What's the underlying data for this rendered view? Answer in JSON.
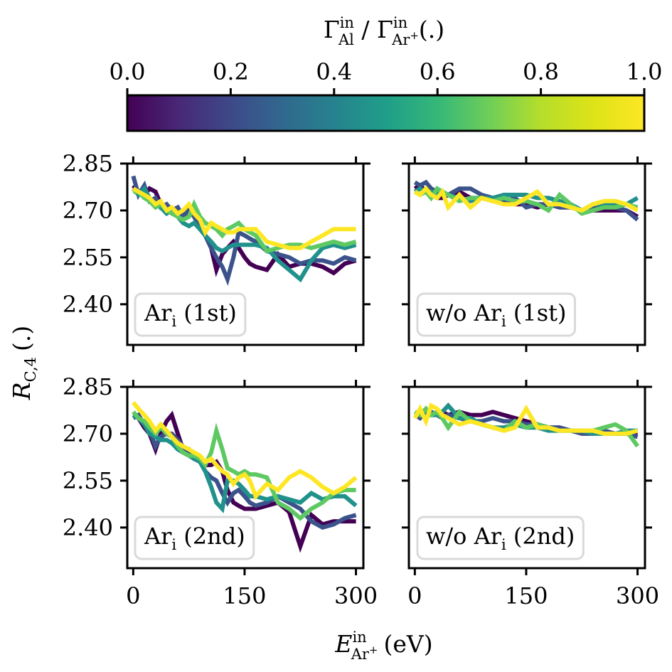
{
  "figure": {
    "colorbar": {
      "label_main": "Γ",
      "label_sub1": "Al",
      "label_sup1": "in",
      "label_sep": " / ",
      "label_main2": "Γ",
      "label_sub2": "Ar",
      "label_sub2_sup": "+",
      "label_sup2": "in",
      "label_unit": "(.)",
      "ticks": [
        "0.0",
        "0.2",
        "0.4",
        "0.6",
        "0.8",
        "1.0"
      ],
      "tick_values": [
        0.0,
        0.2,
        0.4,
        0.6,
        0.8,
        1.0
      ],
      "colormap": "viridis",
      "range": [
        0.0,
        1.0
      ]
    },
    "ylabel": {
      "main": "R",
      "sub": "C,4",
      "unit": "(.)"
    },
    "xlabel": {
      "main": "E",
      "sub": "Ar",
      "sub_sup": "+",
      "sup": "in",
      "unit": "(eV)"
    }
  },
  "chart_data": [
    {
      "type": "line",
      "panel": "top-left",
      "legend_text": "Ar",
      "legend_sub": "i",
      "legend_suffix": " (1st)",
      "xlim": [
        -8,
        310
      ],
      "ylim": [
        2.27,
        2.85
      ],
      "xticks": [
        0,
        150,
        300
      ],
      "xtick_labels": [
        "0",
        "150",
        "300"
      ],
      "yticks": [
        2.4,
        2.55,
        2.7,
        2.85
      ],
      "ytick_labels": [
        "2.40",
        "2.55",
        "2.70",
        "2.85"
      ],
      "x": [
        0,
        7,
        15,
        22,
        30,
        37,
        45,
        52,
        60,
        67,
        75,
        82,
        90,
        97,
        105,
        112,
        120,
        127,
        135,
        142,
        150,
        157,
        165,
        180,
        195,
        210,
        225,
        240,
        255,
        270,
        285,
        300
      ],
      "series": [
        {
          "color_value": 0.0,
          "color": "#440154",
          "values": [
            2.78,
            2.76,
            2.75,
            2.77,
            2.76,
            2.72,
            2.71,
            2.7,
            2.7,
            2.69,
            2.71,
            2.68,
            2.66,
            2.62,
            2.58,
            2.51,
            2.56,
            2.58,
            2.6,
            2.58,
            2.55,
            2.53,
            2.52,
            2.51,
            2.56,
            2.52,
            2.53,
            2.53,
            2.52,
            2.5,
            2.53,
            2.54
          ]
        },
        {
          "color_value": 0.25,
          "color": "#3b528b",
          "values": [
            2.81,
            2.75,
            2.78,
            2.73,
            2.74,
            2.71,
            2.72,
            2.7,
            2.71,
            2.68,
            2.7,
            2.68,
            2.64,
            2.62,
            2.58,
            2.55,
            2.52,
            2.48,
            2.55,
            2.63,
            2.62,
            2.61,
            2.6,
            2.57,
            2.56,
            2.55,
            2.53,
            2.54,
            2.54,
            2.53,
            2.55,
            2.54
          ]
        },
        {
          "color_value": 0.5,
          "color": "#21918c",
          "values": [
            2.77,
            2.75,
            2.77,
            2.74,
            2.72,
            2.71,
            2.69,
            2.7,
            2.68,
            2.66,
            2.65,
            2.66,
            2.64,
            2.62,
            2.6,
            2.58,
            2.57,
            2.58,
            2.59,
            2.59,
            2.59,
            2.59,
            2.59,
            2.58,
            2.54,
            2.51,
            2.48,
            2.54,
            2.58,
            2.59,
            2.58,
            2.59
          ]
        },
        {
          "color_value": 0.75,
          "color": "#5ec962",
          "values": [
            2.76,
            2.76,
            2.74,
            2.73,
            2.71,
            2.72,
            2.7,
            2.69,
            2.68,
            2.67,
            2.68,
            2.72,
            2.68,
            2.66,
            2.65,
            2.64,
            2.62,
            2.64,
            2.65,
            2.66,
            2.64,
            2.63,
            2.62,
            2.57,
            2.58,
            2.59,
            2.59,
            2.58,
            2.59,
            2.6,
            2.59,
            2.6
          ]
        },
        {
          "color_value": 1.0,
          "color": "#fde725",
          "values": [
            2.77,
            2.76,
            2.75,
            2.74,
            2.72,
            2.73,
            2.7,
            2.71,
            2.69,
            2.7,
            2.72,
            2.69,
            2.67,
            2.63,
            2.66,
            2.65,
            2.64,
            2.63,
            2.63,
            2.64,
            2.64,
            2.64,
            2.64,
            2.6,
            2.59,
            2.58,
            2.58,
            2.6,
            2.62,
            2.64,
            2.64,
            2.64
          ]
        }
      ]
    },
    {
      "type": "line",
      "panel": "top-right",
      "legend_text": "w/o Ar",
      "legend_sub": "i",
      "legend_suffix": " (1st)",
      "xlim": [
        -8,
        310
      ],
      "ylim": [
        2.27,
        2.85
      ],
      "xticks": [
        0,
        150,
        300
      ],
      "xtick_labels": [
        "0",
        "150",
        "300"
      ],
      "yticks": [
        2.4,
        2.55,
        2.7,
        2.85
      ],
      "ytick_labels": [
        "2.40",
        "2.55",
        "2.70",
        "2.85"
      ],
      "x": [
        0,
        7,
        15,
        22,
        30,
        37,
        45,
        60,
        75,
        90,
        105,
        120,
        135,
        150,
        165,
        180,
        195,
        210,
        225,
        240,
        255,
        270,
        285,
        300
      ],
      "series": [
        {
          "color_value": 0.0,
          "color": "#440154",
          "values": [
            2.77,
            2.78,
            2.76,
            2.75,
            2.74,
            2.74,
            2.75,
            2.76,
            2.74,
            2.74,
            2.73,
            2.73,
            2.72,
            2.72,
            2.71,
            2.72,
            2.71,
            2.71,
            2.7,
            2.7,
            2.7,
            2.7,
            2.7,
            2.68
          ]
        },
        {
          "color_value": 0.25,
          "color": "#3b528b",
          "values": [
            2.79,
            2.78,
            2.79,
            2.77,
            2.76,
            2.76,
            2.75,
            2.77,
            2.77,
            2.75,
            2.74,
            2.73,
            2.74,
            2.71,
            2.72,
            2.72,
            2.71,
            2.71,
            2.7,
            2.71,
            2.71,
            2.71,
            2.7,
            2.67
          ]
        },
        {
          "color_value": 0.5,
          "color": "#21918c",
          "values": [
            2.76,
            2.77,
            2.76,
            2.76,
            2.75,
            2.76,
            2.75,
            2.74,
            2.73,
            2.74,
            2.74,
            2.75,
            2.75,
            2.75,
            2.74,
            2.74,
            2.73,
            2.72,
            2.7,
            2.72,
            2.72,
            2.72,
            2.72,
            2.74
          ]
        },
        {
          "color_value": 0.75,
          "color": "#5ec962",
          "values": [
            2.76,
            2.75,
            2.76,
            2.74,
            2.77,
            2.76,
            2.75,
            2.73,
            2.74,
            2.74,
            2.73,
            2.74,
            2.73,
            2.73,
            2.72,
            2.7,
            2.75,
            2.72,
            2.69,
            2.7,
            2.71,
            2.71,
            2.72,
            2.71
          ]
        },
        {
          "color_value": 1.0,
          "color": "#fde725",
          "values": [
            2.76,
            2.75,
            2.77,
            2.75,
            2.74,
            2.76,
            2.71,
            2.75,
            2.71,
            2.74,
            2.73,
            2.72,
            2.72,
            2.74,
            2.76,
            2.72,
            2.72,
            2.71,
            2.7,
            2.72,
            2.73,
            2.73,
            2.72,
            2.7
          ]
        }
      ]
    },
    {
      "type": "line",
      "panel": "bottom-left",
      "legend_text": "Ar",
      "legend_sub": "i",
      "legend_suffix": " (2nd)",
      "xlim": [
        -8,
        310
      ],
      "ylim": [
        2.27,
        2.85
      ],
      "xticks": [
        0,
        150,
        300
      ],
      "xtick_labels": [
        "0",
        "150",
        "300"
      ],
      "yticks": [
        2.4,
        2.55,
        2.7,
        2.85
      ],
      "ytick_labels": [
        "2.40",
        "2.55",
        "2.70",
        "2.85"
      ],
      "x": [
        0,
        7,
        15,
        22,
        30,
        37,
        45,
        52,
        60,
        67,
        75,
        82,
        90,
        97,
        105,
        112,
        120,
        127,
        135,
        142,
        150,
        157,
        165,
        180,
        195,
        210,
        225,
        240,
        255,
        270,
        285,
        300
      ],
      "series": [
        {
          "color_value": 0.0,
          "color": "#440154",
          "values": [
            2.76,
            2.75,
            2.72,
            2.7,
            2.65,
            2.7,
            2.74,
            2.76,
            2.7,
            2.65,
            2.65,
            2.62,
            2.62,
            2.6,
            2.6,
            2.61,
            2.58,
            2.52,
            2.48,
            2.47,
            2.46,
            2.46,
            2.46,
            2.47,
            2.48,
            2.45,
            2.34,
            2.44,
            2.41,
            2.42,
            2.42,
            2.42
          ]
        },
        {
          "color_value": 0.25,
          "color": "#3b528b",
          "values": [
            2.75,
            2.76,
            2.73,
            2.71,
            2.66,
            2.69,
            2.7,
            2.7,
            2.68,
            2.66,
            2.64,
            2.62,
            2.61,
            2.58,
            2.56,
            2.55,
            2.51,
            2.48,
            2.51,
            2.52,
            2.5,
            2.48,
            2.47,
            2.48,
            2.5,
            2.48,
            2.46,
            2.42,
            2.4,
            2.41,
            2.43,
            2.44
          ]
        },
        {
          "color_value": 0.5,
          "color": "#21918c",
          "values": [
            2.76,
            2.75,
            2.73,
            2.7,
            2.69,
            2.68,
            2.68,
            2.67,
            2.65,
            2.64,
            2.63,
            2.62,
            2.61,
            2.58,
            2.53,
            2.48,
            2.46,
            2.55,
            2.55,
            2.54,
            2.52,
            2.5,
            2.5,
            2.49,
            2.5,
            2.49,
            2.48,
            2.51,
            2.49,
            2.5,
            2.5,
            2.47
          ]
        },
        {
          "color_value": 0.75,
          "color": "#5ec962",
          "values": [
            2.77,
            2.75,
            2.74,
            2.72,
            2.7,
            2.72,
            2.7,
            2.69,
            2.66,
            2.64,
            2.63,
            2.63,
            2.62,
            2.6,
            2.64,
            2.71,
            2.65,
            2.59,
            2.58,
            2.57,
            2.58,
            2.57,
            2.57,
            2.56,
            2.48,
            2.46,
            2.43,
            2.46,
            2.48,
            2.51,
            2.52,
            2.52
          ]
        },
        {
          "color_value": 1.0,
          "color": "#fde725",
          "values": [
            2.8,
            2.78,
            2.76,
            2.74,
            2.71,
            2.73,
            2.71,
            2.69,
            2.67,
            2.66,
            2.65,
            2.64,
            2.63,
            2.61,
            2.62,
            2.6,
            2.58,
            2.57,
            2.54,
            2.56,
            2.57,
            2.55,
            2.5,
            2.54,
            2.52,
            2.56,
            2.58,
            2.56,
            2.53,
            2.51,
            2.53,
            2.56
          ]
        }
      ]
    },
    {
      "type": "line",
      "panel": "bottom-right",
      "legend_text": "w/o Ar",
      "legend_sub": "i",
      "legend_suffix": " (2nd)",
      "xlim": [
        -8,
        310
      ],
      "ylim": [
        2.27,
        2.85
      ],
      "xticks": [
        0,
        150,
        300
      ],
      "xtick_labels": [
        "0",
        "150",
        "300"
      ],
      "yticks": [
        2.4,
        2.55,
        2.7,
        2.85
      ],
      "ytick_labels": [
        "2.40",
        "2.55",
        "2.70",
        "2.85"
      ],
      "x": [
        0,
        7,
        15,
        22,
        30,
        37,
        45,
        60,
        75,
        90,
        105,
        120,
        135,
        150,
        165,
        180,
        195,
        210,
        225,
        240,
        255,
        270,
        285,
        300
      ],
      "series": [
        {
          "color_value": 0.0,
          "color": "#440154",
          "values": [
            2.76,
            2.76,
            2.77,
            2.77,
            2.76,
            2.77,
            2.76,
            2.77,
            2.76,
            2.76,
            2.77,
            2.76,
            2.75,
            2.74,
            2.73,
            2.72,
            2.72,
            2.71,
            2.71,
            2.7,
            2.71,
            2.7,
            2.7,
            2.7
          ]
        },
        {
          "color_value": 0.25,
          "color": "#3b528b",
          "values": [
            2.76,
            2.75,
            2.77,
            2.77,
            2.76,
            2.75,
            2.76,
            2.75,
            2.74,
            2.74,
            2.75,
            2.74,
            2.74,
            2.73,
            2.73,
            2.72,
            2.72,
            2.71,
            2.7,
            2.7,
            2.71,
            2.7,
            2.7,
            2.69
          ]
        },
        {
          "color_value": 0.5,
          "color": "#21918c",
          "values": [
            2.76,
            2.77,
            2.76,
            2.76,
            2.76,
            2.77,
            2.79,
            2.75,
            2.75,
            2.73,
            2.72,
            2.72,
            2.73,
            2.72,
            2.72,
            2.71,
            2.71,
            2.71,
            2.71,
            2.7,
            2.7,
            2.7,
            2.71,
            2.71
          ]
        },
        {
          "color_value": 0.75,
          "color": "#5ec962",
          "values": [
            2.77,
            2.76,
            2.78,
            2.76,
            2.77,
            2.75,
            2.72,
            2.77,
            2.74,
            2.73,
            2.72,
            2.71,
            2.74,
            2.72,
            2.73,
            2.72,
            2.71,
            2.71,
            2.71,
            2.71,
            2.72,
            2.73,
            2.71,
            2.66
          ]
        },
        {
          "color_value": 1.0,
          "color": "#fde725",
          "values": [
            2.75,
            2.78,
            2.74,
            2.79,
            2.78,
            2.76,
            2.75,
            2.73,
            2.74,
            2.73,
            2.72,
            2.71,
            2.72,
            2.78,
            2.72,
            2.72,
            2.71,
            2.71,
            2.71,
            2.71,
            2.7,
            2.7,
            2.7,
            2.71
          ]
        }
      ]
    }
  ]
}
